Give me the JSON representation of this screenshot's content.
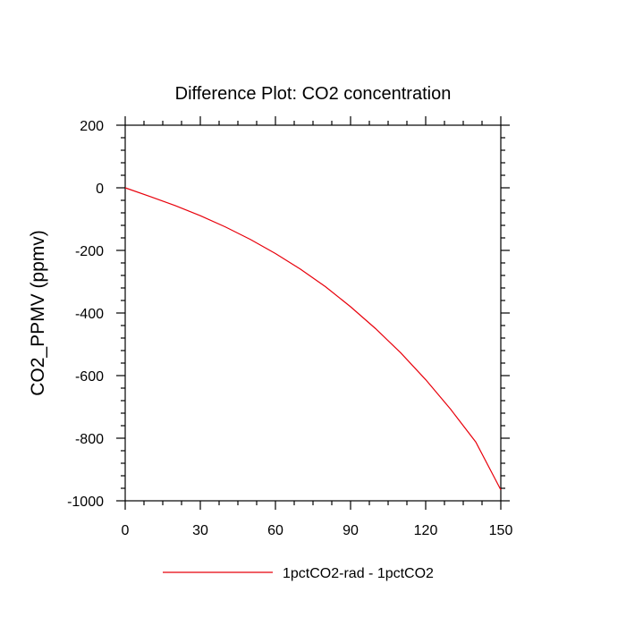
{
  "chart_data": {
    "type": "line",
    "title": "Difference Plot: CO2 concentration",
    "xlabel": "",
    "ylabel": "CO2_PPMV  (ppmv)",
    "xlim": [
      0,
      150
    ],
    "ylim": [
      -1000,
      200
    ],
    "xticks": [
      0,
      30,
      60,
      90,
      120,
      150
    ],
    "xtick_labels": [
      "0",
      "30",
      "60",
      "90",
      "120",
      "150"
    ],
    "yticks": [
      200,
      0,
      -200,
      -400,
      -600,
      -800,
      -1000
    ],
    "ytick_labels": [
      "200",
      "0",
      "-200",
      "-400",
      "-600",
      "-800",
      "-1000"
    ],
    "grid": false,
    "legend_position": "bottom-center",
    "series": [
      {
        "name": "1pctCO2-rad - 1pctCO2",
        "color": "#e8000b",
        "x": [
          0,
          10,
          20,
          30,
          40,
          50,
          60,
          70,
          80,
          90,
          100,
          110,
          120,
          130,
          140,
          150
        ],
        "y": [
          0,
          -28,
          -57,
          -89,
          -125,
          -165,
          -210,
          -260,
          -316,
          -380,
          -450,
          -527,
          -613,
          -708,
          -812,
          -965
        ]
      }
    ]
  }
}
